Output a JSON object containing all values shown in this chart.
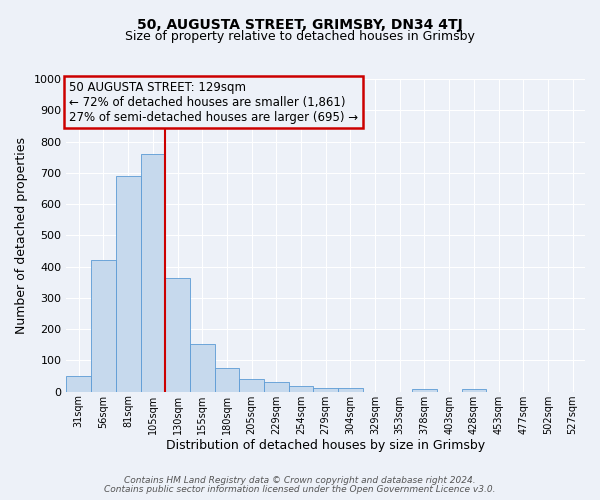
{
  "title": "50, AUGUSTA STREET, GRIMSBY, DN34 4TJ",
  "subtitle": "Size of property relative to detached houses in Grimsby",
  "xlabel": "Distribution of detached houses by size in Grimsby",
  "ylabel": "Number of detached properties",
  "bar_labels": [
    "31sqm",
    "56sqm",
    "81sqm",
    "105sqm",
    "130sqm",
    "155sqm",
    "180sqm",
    "205sqm",
    "229sqm",
    "254sqm",
    "279sqm",
    "304sqm",
    "329sqm",
    "353sqm",
    "378sqm",
    "403sqm",
    "428sqm",
    "453sqm",
    "477sqm",
    "502sqm",
    "527sqm"
  ],
  "bar_values": [
    50,
    420,
    690,
    760,
    365,
    152,
    75,
    40,
    32,
    18,
    12,
    12,
    0,
    0,
    8,
    0,
    8,
    0,
    0,
    0,
    0
  ],
  "bar_color": "#c6d9ed",
  "bar_edge_color": "#5b9bd5",
  "vline_x_index": 4,
  "vline_color": "#cc0000",
  "ylim": [
    0,
    1000
  ],
  "yticks": [
    0,
    100,
    200,
    300,
    400,
    500,
    600,
    700,
    800,
    900,
    1000
  ],
  "annotation_box_title": "50 AUGUSTA STREET: 129sqm",
  "annotation_line1": "← 72% of detached houses are smaller (1,861)",
  "annotation_line2": "27% of semi-detached houses are larger (695) →",
  "annotation_box_color": "#cc0000",
  "footer_line1": "Contains HM Land Registry data © Crown copyright and database right 2024.",
  "footer_line2": "Contains public sector information licensed under the Open Government Licence v3.0.",
  "background_color": "#edf1f8",
  "grid_color": "#ffffff"
}
